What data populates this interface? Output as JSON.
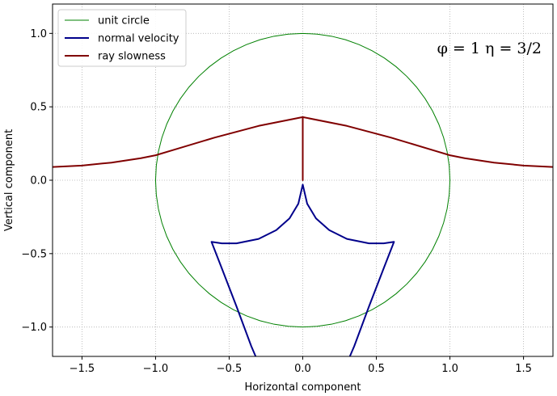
{
  "chart_data": {
    "type": "line",
    "xlabel": "Horizontal component",
    "ylabel": "Vertical component",
    "xlim": [
      -1.7,
      1.7
    ],
    "ylim": [
      -1.2,
      1.2
    ],
    "xticks": [
      -1.5,
      -1.0,
      -0.5,
      0.0,
      0.5,
      1.0,
      1.5
    ],
    "xtick_labels": [
      "−1.5",
      "−1.0",
      "−0.5",
      "0.0",
      "0.5",
      "1.0",
      "1.5"
    ],
    "yticks": [
      -1.0,
      -0.5,
      0.0,
      0.5,
      1.0
    ],
    "ytick_labels": [
      "−1.0",
      "−0.5",
      "0.0",
      "0.5",
      "1.0"
    ],
    "grid": true,
    "legend_position": "top-left",
    "annotation": "φ = 1    η = 3/2",
    "series": [
      {
        "name": "unit circle",
        "color": "#008000",
        "shape": "circle",
        "center": [
          0,
          0
        ],
        "radius": 1.0
      },
      {
        "name": "normal velocity",
        "color": "#00008b",
        "points": [
          [
            0.0,
            -0.03
          ],
          [
            -0.03,
            -0.16
          ],
          [
            -0.09,
            -0.26
          ],
          [
            -0.18,
            -0.34
          ],
          [
            -0.3,
            -0.4
          ],
          [
            -0.45,
            -0.43
          ],
          [
            -0.55,
            -0.43
          ],
          [
            -0.62,
            -0.42
          ],
          [
            -0.55,
            -0.6
          ],
          [
            -0.45,
            -0.86
          ],
          [
            -0.35,
            -1.13
          ],
          [
            -0.32,
            -1.2
          ]
        ],
        "mirror_x": true
      },
      {
        "name": "ray slowness",
        "color": "#800000",
        "points": [
          [
            0.0,
            0.0
          ],
          [
            0.0,
            0.43
          ],
          [
            -0.3,
            0.37
          ],
          [
            -0.6,
            0.29
          ],
          [
            -0.9,
            0.2
          ],
          [
            -1.0,
            0.17
          ],
          [
            -1.1,
            0.15
          ],
          [
            -1.3,
            0.12
          ],
          [
            -1.5,
            0.1
          ],
          [
            -1.7,
            0.09
          ]
        ],
        "mirror_x": true
      }
    ]
  }
}
